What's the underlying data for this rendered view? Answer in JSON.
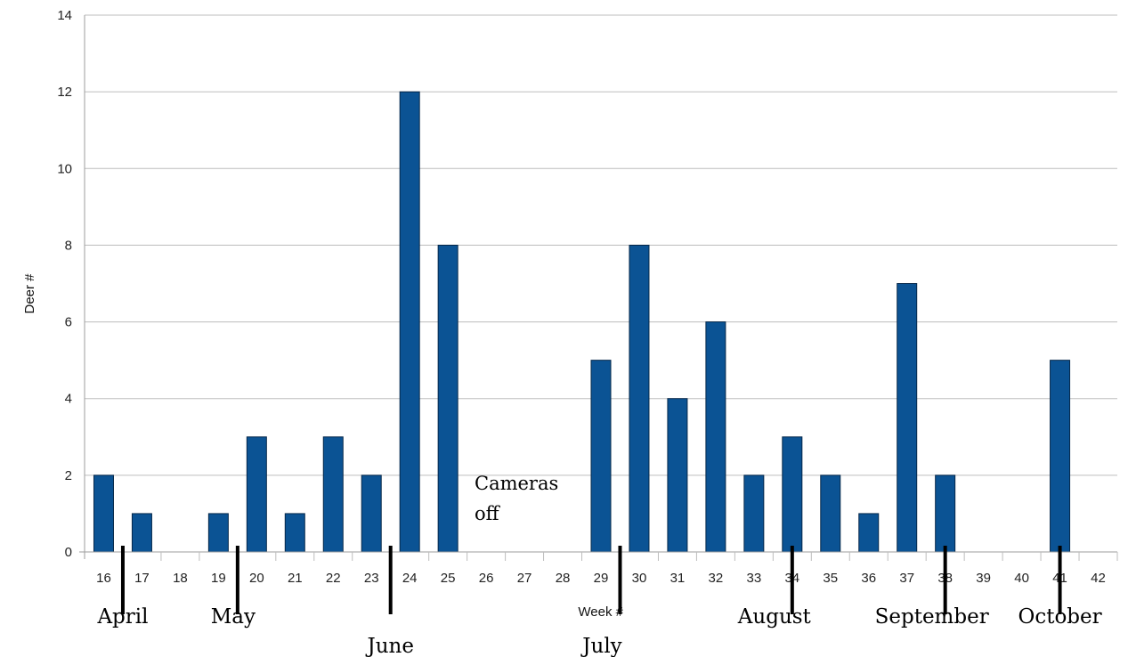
{
  "chart_data": {
    "type": "bar",
    "title": "",
    "xlabel": "Week #",
    "ylabel": "Deer #",
    "ylim": [
      0,
      14
    ],
    "yticks": [
      0,
      2,
      4,
      6,
      8,
      10,
      12,
      14
    ],
    "grid": true,
    "legend": "none",
    "bar_color": "#0b5394",
    "categories": [
      "16",
      "17",
      "18",
      "19",
      "20",
      "21",
      "22",
      "23",
      "24",
      "25",
      "26",
      "27",
      "28",
      "29",
      "30",
      "31",
      "32",
      "33",
      "34",
      "35",
      "36",
      "37",
      "38",
      "39",
      "40",
      "41",
      "42"
    ],
    "series": [
      {
        "values": [
          2,
          1,
          0,
          1,
          3,
          1,
          3,
          2,
          12,
          8,
          0,
          0,
          0,
          5,
          8,
          4,
          6,
          2,
          3,
          2,
          1,
          7,
          2,
          0,
          0,
          5,
          0
        ]
      }
    ],
    "annotations": {
      "note": [
        "Cameras",
        "off"
      ],
      "months": [
        {
          "label": "April",
          "marker_week": 16.5
        },
        {
          "label": "May",
          "marker_week": 19.5
        },
        {
          "label": "June",
          "marker_week": 23.5
        },
        {
          "label": "July",
          "marker_week": 29.5
        },
        {
          "label": "August",
          "marker_week": 34
        },
        {
          "label": "September",
          "marker_week": 38
        },
        {
          "label": "October",
          "marker_week": 41
        }
      ]
    }
  }
}
